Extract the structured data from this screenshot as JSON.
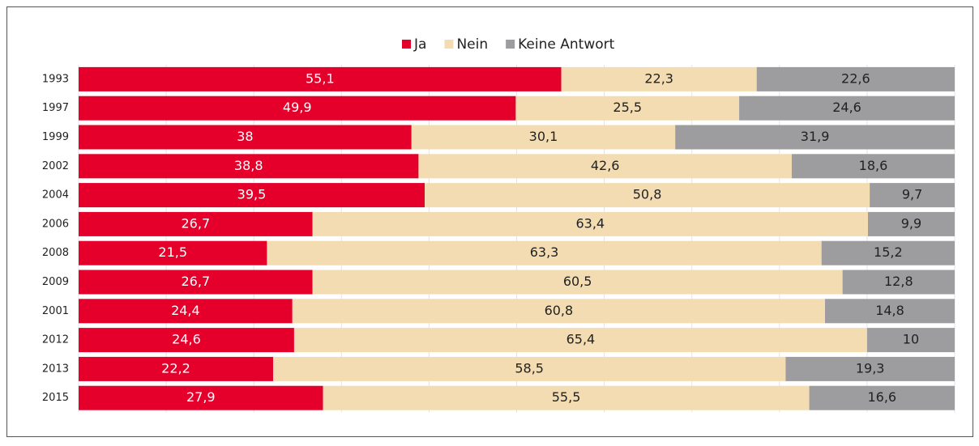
{
  "chart_data": {
    "type": "stacked-barh",
    "categories": [
      "1993",
      "1997",
      "1999",
      "2002",
      "2004",
      "2006",
      "2008",
      "2009",
      "2001",
      "2012",
      "2013",
      "2015"
    ],
    "series": [
      {
        "name": "Ja",
        "color": "#e4002b",
        "values": [
          55.1,
          49.9,
          38,
          38.8,
          39.5,
          26.7,
          21.5,
          26.7,
          24.4,
          24.6,
          22.2,
          27.9
        ],
        "value_labels": [
          "55,1",
          "49,9",
          "38",
          "38,8",
          "39,5",
          "26,7",
          "21,5",
          "26,7",
          "24,4",
          "24,6",
          "22,2",
          "27,9"
        ]
      },
      {
        "name": "Nein",
        "color": "#f3dcb2",
        "values": [
          22.3,
          25.5,
          30.1,
          42.6,
          50.8,
          63.4,
          63.3,
          60.5,
          60.8,
          65.4,
          58.5,
          55.5
        ],
        "value_labels": [
          "22,3",
          "25,5",
          "30,1",
          "42,6",
          "50,8",
          "63,4",
          "63,3",
          "60,5",
          "60,8",
          "65,4",
          "58,5",
          "55,5"
        ]
      },
      {
        "name": "Keine Antwort",
        "color": "#9d9c9e",
        "values": [
          22.6,
          24.6,
          31.9,
          18.6,
          9.7,
          9.9,
          15.2,
          12.8,
          14.8,
          10,
          19.3,
          16.6
        ],
        "value_labels": [
          "22,6",
          "24,6",
          "31,9",
          "18,6",
          "9,7",
          "9,9",
          "15,2",
          "12,8",
          "14,8",
          "10",
          "19,3",
          "16,6"
        ]
      }
    ],
    "xlim": [
      0,
      100
    ],
    "xticks": [
      0,
      10,
      20,
      30,
      40,
      50,
      60,
      70,
      80,
      90,
      100
    ],
    "grid": true,
    "legend": "top"
  }
}
